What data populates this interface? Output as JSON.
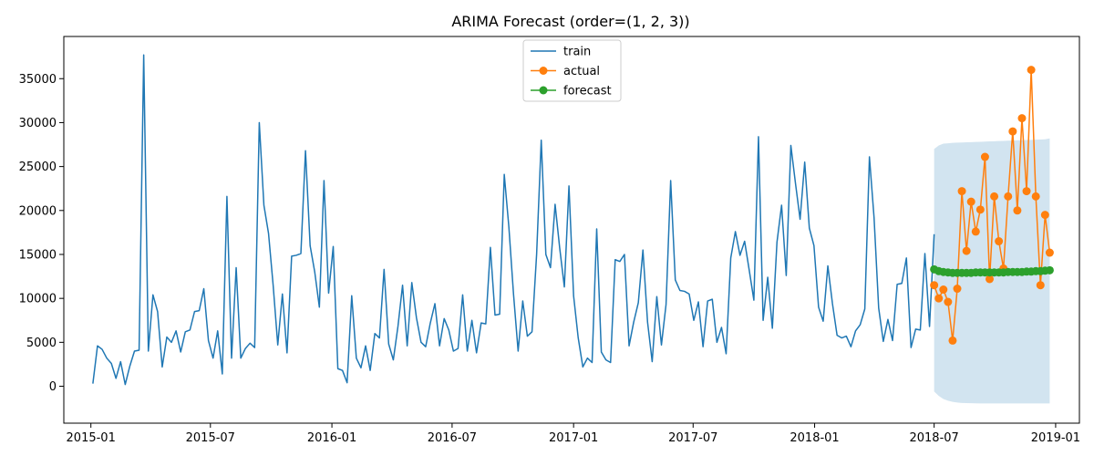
{
  "chart_data": {
    "type": "line",
    "title": "ARIMA Forecast (order=(1, 2, 3))",
    "xlabel": "",
    "ylabel": "",
    "x_range": [
      "2014-11-21",
      "2019-02-06"
    ],
    "ylim": [
      -4200,
      39800
    ],
    "x_ticks": [
      "2015-01",
      "2015-07",
      "2016-01",
      "2016-07",
      "2017-01",
      "2017-07",
      "2018-01",
      "2018-07",
      "2019-01"
    ],
    "x_tick_dates": [
      "2015-01-01",
      "2015-07-01",
      "2016-01-01",
      "2016-07-01",
      "2017-01-01",
      "2017-07-01",
      "2018-01-01",
      "2018-07-01",
      "2019-01-01"
    ],
    "y_ticks": [
      0,
      5000,
      10000,
      15000,
      20000,
      25000,
      30000,
      35000
    ],
    "legend_position": "upper center",
    "grid": false,
    "series": [
      {
        "name": "train",
        "color": "#1f77b4",
        "marker": "none",
        "start_date": "2015-01-04",
        "step_days": 7,
        "values": [
          300,
          4600,
          4200,
          3200,
          2600,
          900,
          2800,
          200,
          2300,
          4000,
          4100,
          37700,
          4000,
          10400,
          8500,
          2200,
          5600,
          5000,
          6300,
          3900,
          6200,
          6400,
          8500,
          8600,
          11100,
          5200,
          3200,
          6300,
          1400,
          21600,
          3200,
          13500,
          3200,
          4300,
          4900,
          4400,
          30000,
          20600,
          17400,
          11500,
          4700,
          10500,
          3800,
          14800,
          14900,
          15100,
          26800,
          16000,
          13000,
          9000,
          23400,
          10600,
          15900,
          2000,
          1800,
          400,
          10300,
          3200,
          2100,
          4600,
          1800,
          6000,
          5500,
          13300,
          4800,
          3000,
          6800,
          11500,
          4600,
          11800,
          7800,
          5000,
          4500,
          7200,
          9400,
          4600,
          7700,
          6400,
          4000,
          4300,
          10400,
          4000,
          7500,
          3800,
          7200,
          7100,
          15800,
          8100,
          8200,
          24100,
          18100,
          10500,
          4000,
          9700,
          5700,
          6200,
          15000,
          28000,
          15000,
          13500,
          20700,
          15700,
          11300,
          22800,
          10300,
          5500,
          2200,
          3200,
          2700,
          17900,
          3900,
          3000,
          2700,
          14400,
          14200,
          15000,
          4600,
          7300,
          9500,
          15500,
          7300,
          2800,
          10200,
          4700,
          9300,
          23400,
          12100,
          10900,
          10800,
          10500,
          7500,
          9600,
          4500,
          9700,
          9900,
          5000,
          6700,
          3700,
          14600,
          17600,
          14900,
          16500,
          13200,
          9800,
          28400,
          7500,
          12400,
          6600,
          16400,
          20600,
          12600,
          27400,
          23100,
          19000,
          25500,
          18000,
          16000,
          9000,
          7400,
          13700,
          9400,
          5800,
          5500,
          5700,
          4500,
          6300,
          7000,
          8800,
          26100,
          19200,
          8900,
          5100,
          7600,
          5200,
          11600,
          11700,
          14600,
          4400,
          6500,
          6400,
          15100,
          6800,
          17300
        ]
      },
      {
        "name": "actual",
        "color": "#ff7f0e",
        "marker": "circle",
        "start_date": "2018-07-01",
        "step_days": 7,
        "values": [
          11500,
          10000,
          11000,
          9600,
          5200,
          11100,
          22200,
          15400,
          21000,
          17600,
          20100,
          26100,
          12200,
          21600,
          16500,
          13400,
          21600,
          29000,
          20000,
          30500,
          22200,
          36000,
          21600,
          11500,
          19500,
          15200
        ]
      },
      {
        "name": "forecast",
        "color": "#2ca02c",
        "marker": "circle",
        "start_date": "2018-07-01",
        "step_days": 7,
        "values": [
          13300,
          13100,
          13000,
          12950,
          12900,
          12900,
          12900,
          12900,
          12900,
          12950,
          12950,
          12950,
          12950,
          12950,
          12950,
          12950,
          13000,
          13000,
          13000,
          13000,
          13050,
          13050,
          13100,
          13100,
          13150,
          13200
        ]
      }
    ],
    "confidence_band": {
      "color": "#1f77b4",
      "opacity": 0.2,
      "start_date": "2018-07-01",
      "step_days": 7,
      "upper": [
        27000,
        27400,
        27600,
        27650,
        27700,
        27720,
        27740,
        27760,
        27780,
        27800,
        27820,
        27840,
        27860,
        27880,
        27900,
        27920,
        27940,
        27960,
        27980,
        28000,
        28020,
        28040,
        28060,
        28080,
        28100,
        28200
      ],
      "lower": [
        -600,
        -1100,
        -1450,
        -1650,
        -1780,
        -1850,
        -1900,
        -1920,
        -1930,
        -1940,
        -1950,
        -1950,
        -1950,
        -1950,
        -1950,
        -1950,
        -1950,
        -1950,
        -1950,
        -1950,
        -1950,
        -1950,
        -1950,
        -1950,
        -1950,
        -1950
      ]
    }
  }
}
